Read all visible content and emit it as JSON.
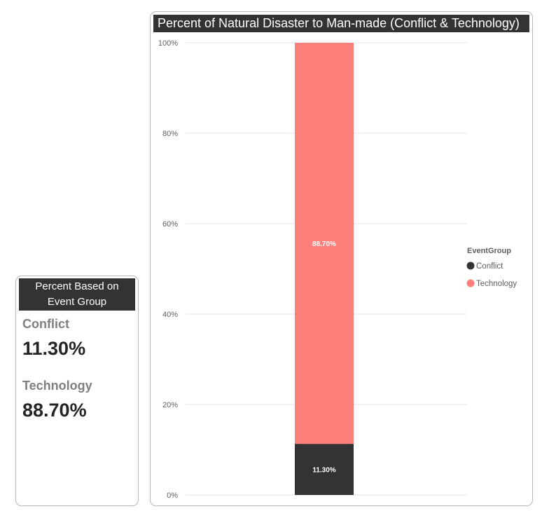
{
  "kpi_card": {
    "title_line1": "Percent Based on",
    "title_line2": "Event Group",
    "items": [
      {
        "label": "Conflict",
        "value": "11.30%"
      },
      {
        "label": "Technology",
        "value": "88.70%"
      }
    ]
  },
  "chart_data": {
    "type": "bar",
    "stacked": true,
    "title": "Percent of Natural Disaster to Man-made (Conflict & Technology)",
    "xlabel": "",
    "ylabel": "",
    "categories": [
      ""
    ],
    "series": [
      {
        "name": "Conflict",
        "values": [
          11.3
        ],
        "label": "11.30%",
        "color": "#333333"
      },
      {
        "name": "Technology",
        "values": [
          88.7
        ],
        "label": "88.70%",
        "color": "#fd7f7b"
      }
    ],
    "ylim": [
      0,
      100
    ],
    "yticks": [
      {
        "value": 0,
        "label": "0%"
      },
      {
        "value": 20,
        "label": "20%"
      },
      {
        "value": 40,
        "label": "40%"
      },
      {
        "value": 60,
        "label": "60%"
      },
      {
        "value": 80,
        "label": "80%"
      },
      {
        "value": 100,
        "label": "100%"
      }
    ],
    "grid": true,
    "legend": {
      "title": "EventGroup",
      "placement": "right"
    }
  }
}
